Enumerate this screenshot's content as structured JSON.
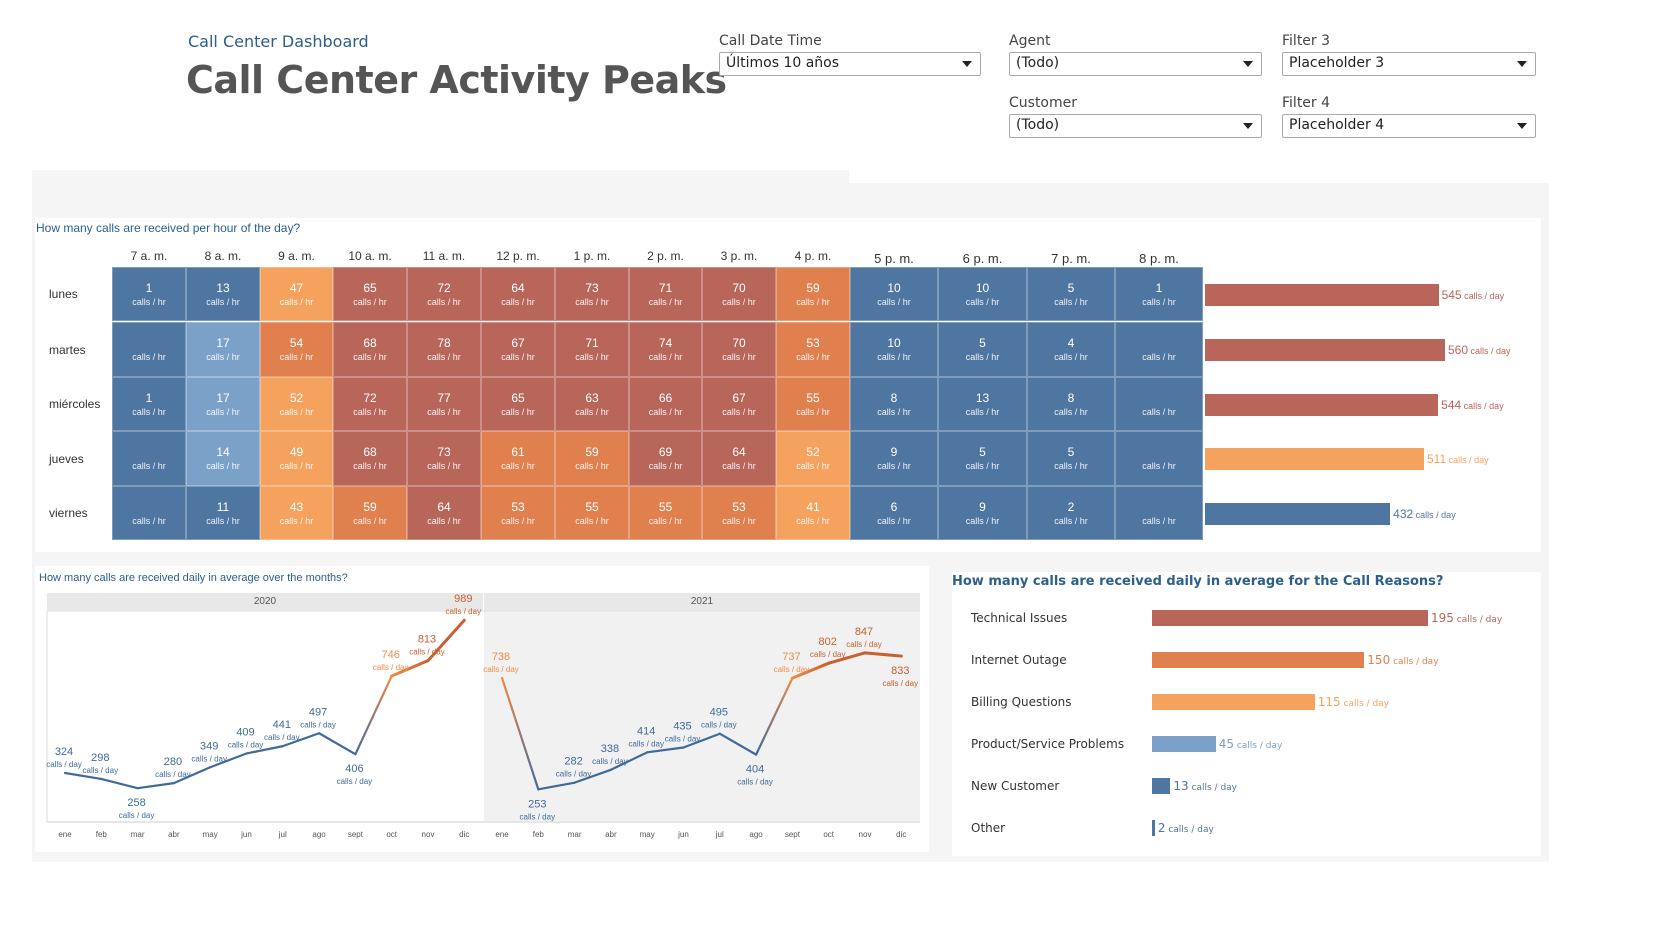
{
  "header": {
    "subtitle": "Call Center Dashboard",
    "title": "Call Center Activity Peaks"
  },
  "filters": [
    {
      "label": "Call Date Time",
      "value": "Últimos 10 años"
    },
    {
      "label": "Agent",
      "value": "(Todo)"
    },
    {
      "label": "Filter 3",
      "value": "Placeholder 3"
    },
    {
      "label": "Customer",
      "value": "(Todo)"
    },
    {
      "label": "Filter 4",
      "value": "Placeholder 4"
    }
  ],
  "colors": {
    "blue_dark": "#4f76a1",
    "blue_light": "#7ba1c9",
    "orange_light": "#f5a25e",
    "orange_mid": "#e0804f",
    "orange_dark": "#b9665a",
    "title_blue": "#2c5f8a"
  },
  "chart_data": [
    {
      "type": "heatmap",
      "title": "How many calls are received per hour of the day?",
      "unit": "calls / hr",
      "hours": [
        "7 a. m.",
        "8 a. m.",
        "9 a. m.",
        "10 a. m.",
        "11 a. m.",
        "12 p. m.",
        "1 p. m.",
        "2 p. m.",
        "3 p. m.",
        "4 p. m.",
        "5 p. m.",
        "6 p. m.",
        "7 p. m.",
        "8 p. m."
      ],
      "days": [
        "lunes",
        "martes",
        "miércoles",
        "jueves",
        "viernes"
      ],
      "values": [
        [
          1,
          13,
          47,
          65,
          72,
          64,
          73,
          71,
          70,
          59,
          10,
          10,
          5,
          1
        ],
        [
          null,
          17,
          54,
          68,
          78,
          67,
          71,
          74,
          70,
          53,
          10,
          5,
          4,
          null
        ],
        [
          1,
          17,
          52,
          72,
          77,
          65,
          63,
          66,
          67,
          55,
          8,
          13,
          8,
          null
        ],
        [
          null,
          14,
          49,
          68,
          73,
          61,
          59,
          69,
          64,
          52,
          9,
          5,
          5,
          null
        ],
        [
          null,
          11,
          43,
          59,
          64,
          53,
          55,
          55,
          53,
          41,
          6,
          9,
          2,
          null
        ]
      ]
    },
    {
      "type": "bar",
      "unit": "calls / day",
      "categories": [
        "lunes",
        "martes",
        "miércoles",
        "jueves",
        "viernes"
      ],
      "values": [
        545,
        560,
        544,
        511,
        432
      ]
    },
    {
      "type": "line",
      "title": "How many calls are received daily in average over the months?",
      "unit": "calls / day",
      "months": [
        "ene",
        "feb",
        "mar",
        "abr",
        "may",
        "jun",
        "jul",
        "ago",
        "sept",
        "oct",
        "nov",
        "dic"
      ],
      "series": [
        {
          "name": "2020",
          "values": [
            324,
            298,
            258,
            280,
            349,
            409,
            441,
            497,
            406,
            746,
            813,
            989
          ]
        },
        {
          "name": "2021",
          "values": [
            738,
            253,
            282,
            338,
            414,
            435,
            495,
            404,
            737,
            802,
            847,
            833
          ]
        }
      ]
    },
    {
      "type": "bar",
      "title": "How many calls are received daily in average for the Call Reasons?",
      "unit": "calls / day",
      "categories": [
        "Technical Issues",
        "Internet Outage",
        "Billing Questions",
        "Product/Service Problems",
        "New Customer",
        "Other"
      ],
      "values": [
        195,
        150,
        115,
        45,
        13,
        2
      ]
    }
  ]
}
